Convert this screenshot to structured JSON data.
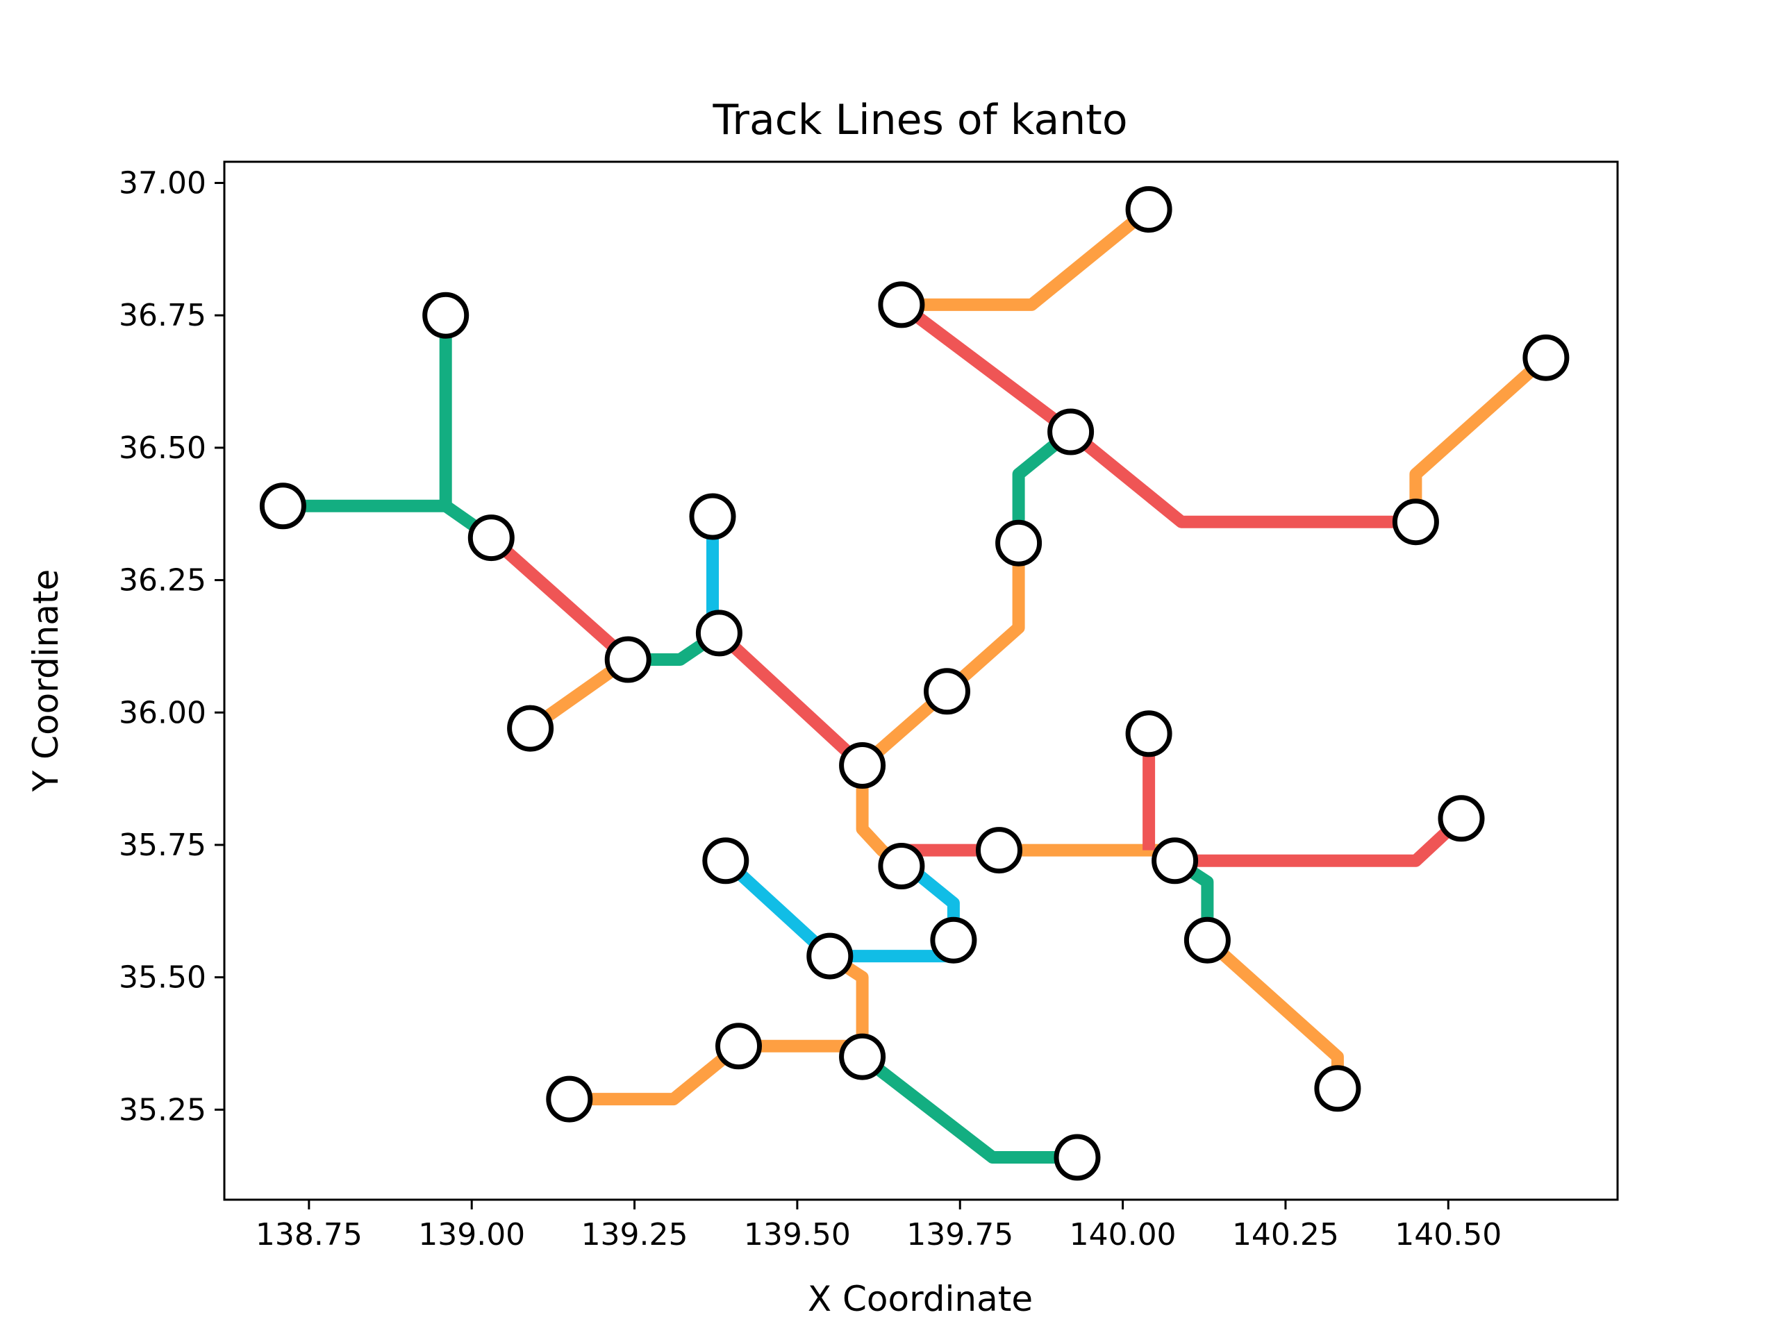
{
  "chart_data": {
    "type": "line",
    "title": "Track Lines of kanto",
    "xlabel": "X Coordinate",
    "ylabel": "Y Coordinate",
    "xlim": [
      138.62,
      140.76
    ],
    "ylim": [
      35.08,
      37.04
    ],
    "x_ticks": [
      138.75,
      139.0,
      139.25,
      139.5,
      139.75,
      140.0,
      140.25,
      140.5
    ],
    "x_tick_labels": [
      "138.75",
      "139.00",
      "139.25",
      "139.50",
      "139.75",
      "140.00",
      "140.25",
      "140.50"
    ],
    "y_ticks": [
      35.25,
      35.5,
      35.75,
      36.0,
      36.25,
      36.5,
      36.75,
      37.0
    ],
    "y_tick_labels": [
      "35.25",
      "35.50",
      "35.75",
      "36.00",
      "36.25",
      "36.50",
      "36.75",
      "37.00"
    ],
    "grid": false,
    "colors": {
      "green": "#13ae81",
      "red": "#ef5555",
      "orange": "#fe9f42",
      "blue": "#11bde6"
    },
    "series": [
      {
        "color": "green",
        "x": [
          138.71,
          138.96,
          138.96
        ],
        "y": [
          36.39,
          36.39,
          36.75
        ]
      },
      {
        "color": "green",
        "x": [
          138.96,
          139.03
        ],
        "y": [
          36.39,
          36.33
        ]
      },
      {
        "color": "red",
        "x": [
          139.03,
          139.24
        ],
        "y": [
          36.33,
          36.1
        ]
      },
      {
        "color": "green",
        "x": [
          139.24,
          139.32,
          139.38
        ],
        "y": [
          36.1,
          36.1,
          36.15
        ]
      },
      {
        "color": "orange",
        "x": [
          139.09,
          139.24
        ],
        "y": [
          35.97,
          36.1
        ]
      },
      {
        "color": "blue",
        "x": [
          139.37,
          139.37
        ],
        "y": [
          36.37,
          36.15
        ]
      },
      {
        "color": "red",
        "x": [
          139.38,
          139.6
        ],
        "y": [
          36.15,
          35.9
        ]
      },
      {
        "color": "orange",
        "x": [
          139.6,
          139.73,
          139.84,
          139.84
        ],
        "y": [
          35.9,
          36.04,
          36.16,
          36.32
        ]
      },
      {
        "color": "green",
        "x": [
          139.84,
          139.84,
          139.92
        ],
        "y": [
          36.32,
          36.45,
          36.53
        ]
      },
      {
        "color": "red",
        "x": [
          139.66,
          139.92,
          140.09,
          140.45
        ],
        "y": [
          36.77,
          36.53,
          36.36,
          36.36
        ]
      },
      {
        "color": "orange",
        "x": [
          139.66,
          139.86,
          140.04
        ],
        "y": [
          36.77,
          36.77,
          36.95
        ]
      },
      {
        "color": "orange",
        "x": [
          140.45,
          140.45,
          140.65
        ],
        "y": [
          36.36,
          36.45,
          36.67
        ]
      },
      {
        "color": "orange",
        "x": [
          139.6,
          139.6,
          139.63,
          139.66
        ],
        "y": [
          35.9,
          35.78,
          35.74,
          35.71
        ]
      },
      {
        "color": "red",
        "x": [
          139.66,
          139.81
        ],
        "y": [
          35.74,
          35.74
        ]
      },
      {
        "color": "orange",
        "x": [
          139.81,
          140.08
        ],
        "y": [
          35.74,
          35.74
        ]
      },
      {
        "color": "red",
        "x": [
          140.04,
          140.04
        ],
        "y": [
          35.96,
          35.74
        ]
      },
      {
        "color": "red",
        "x": [
          140.08,
          140.45,
          140.52
        ],
        "y": [
          35.72,
          35.72,
          35.8
        ]
      },
      {
        "color": "green",
        "x": [
          140.08,
          140.13,
          140.13
        ],
        "y": [
          35.72,
          35.68,
          35.57
        ]
      },
      {
        "color": "orange",
        "x": [
          140.13,
          140.33,
          140.33
        ],
        "y": [
          35.57,
          35.35,
          35.29
        ]
      },
      {
        "color": "blue",
        "x": [
          139.67,
          139.74,
          139.74
        ],
        "y": [
          35.71,
          35.64,
          35.57
        ]
      },
      {
        "color": "blue",
        "x": [
          139.39,
          139.55,
          139.74
        ],
        "y": [
          35.72,
          35.54,
          35.54
        ]
      },
      {
        "color": "orange",
        "x": [
          139.55,
          139.6,
          139.6
        ],
        "y": [
          35.54,
          35.5,
          35.35
        ]
      },
      {
        "color": "orange",
        "x": [
          139.15,
          139.31,
          139.41,
          139.6
        ],
        "y": [
          35.27,
          35.27,
          35.37,
          35.37
        ]
      },
      {
        "color": "green",
        "x": [
          139.6,
          139.8,
          139.93
        ],
        "y": [
          35.35,
          35.16,
          35.16
        ]
      }
    ],
    "stations": {
      "x": [
        138.71,
        138.96,
        139.03,
        139.24,
        139.09,
        139.37,
        139.38,
        139.6,
        139.73,
        139.84,
        139.92,
        139.66,
        140.04,
        140.45,
        140.65,
        140.04,
        139.81,
        139.66,
        140.08,
        140.52,
        140.13,
        140.33,
        139.39,
        139.55,
        139.74,
        139.15,
        139.41,
        139.6,
        139.93
      ],
      "y": [
        36.39,
        36.75,
        36.33,
        36.1,
        35.97,
        36.37,
        36.15,
        35.9,
        36.04,
        36.32,
        36.53,
        36.77,
        36.95,
        36.36,
        36.67,
        35.96,
        35.74,
        35.71,
        35.72,
        35.8,
        35.57,
        35.29,
        35.72,
        35.54,
        35.57,
        35.27,
        35.37,
        35.35,
        35.16
      ]
    }
  }
}
